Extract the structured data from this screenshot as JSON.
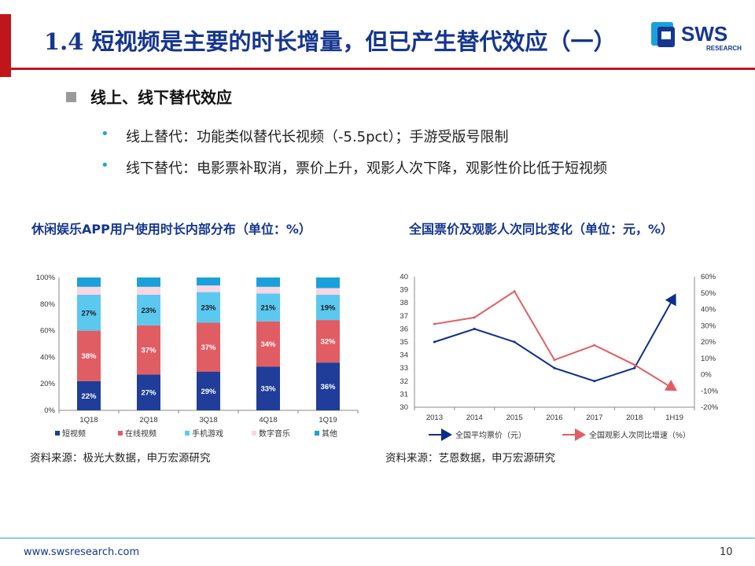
{
  "slide": {
    "title": "1.4 短视频是主要的时长增量，但已产生替代效应（一）",
    "logo_text": "SWS",
    "logo_sub": "RESEARCH",
    "section_heading": "线上、线下替代效应",
    "bullets": [
      "线上替代：功能类似替代长视频（-5.5pct）；手游受版号限制",
      "线下替代：电影票补取消，票价上升，观影人次下降，观影性价比低于短视频"
    ],
    "footer_url": "www.swsresearch.com",
    "page_number": "10"
  },
  "colors": {
    "brand_red": "#c0161b",
    "brand_blue": "#16368f",
    "bullet_blue": "#29a3d9",
    "line_blue": "#0d2e8a",
    "line_red": "#e15d64"
  },
  "chart_data": [
    {
      "type": "bar",
      "stacked": true,
      "title": "休闲娱乐APP用户使用时长内部分布（单位：%）",
      "source": "资料来源：极光大数据，申万宏源研究",
      "categories": [
        "1Q18",
        "2Q18",
        "3Q18",
        "4Q18",
        "1Q19"
      ],
      "ylim": [
        0,
        100
      ],
      "yticks": [
        "0%",
        "20%",
        "40%",
        "60%",
        "80%",
        "100%"
      ],
      "legend_position": "bottom",
      "series": [
        {
          "name": "短视频",
          "color": "#1f3d99",
          "values": [
            22,
            27,
            29,
            33,
            36
          ],
          "labels": [
            "22%",
            "27%",
            "29%",
            "33%",
            "36%"
          ]
        },
        {
          "name": "在线视频",
          "color": "#e15d64",
          "values": [
            38,
            37,
            37,
            34,
            32
          ],
          "labels": [
            "38%",
            "37%",
            "37%",
            "34%",
            "32%"
          ]
        },
        {
          "name": "手机游戏",
          "color": "#5bc8f0",
          "values": [
            27,
            23,
            23,
            21,
            19
          ],
          "labels": [
            "27%",
            "23%",
            "23%",
            "21%",
            "19%"
          ]
        },
        {
          "name": "数字音乐",
          "color": "#f7d7e3",
          "values": [
            6,
            6,
            5,
            5,
            5
          ]
        },
        {
          "name": "其他",
          "color": "#1aa1dc",
          "values": [
            7,
            7,
            6,
            7,
            8
          ]
        }
      ]
    },
    {
      "type": "line",
      "title": "全国票价及观影人次同比变化（单位：元，%）",
      "source": "资料来源：艺恩数据，申万宏源研究",
      "categories": [
        "2013",
        "2014",
        "2015",
        "2016",
        "2017",
        "2018",
        "1H19"
      ],
      "ylim_left": [
        30,
        40
      ],
      "yticks_left": [
        "30",
        "31",
        "32",
        "33",
        "34",
        "35",
        "36",
        "37",
        "38",
        "39",
        "40"
      ],
      "ylim_right": [
        -20,
        60
      ],
      "yticks_right": [
        "-20%",
        "-10%",
        "0%",
        "10%",
        "20%",
        "30%",
        "40%",
        "50%",
        "60%"
      ],
      "legend_position": "bottom",
      "series": [
        {
          "name": "全国平均票价（元）",
          "axis": "left",
          "color": "#0d2e8a",
          "values": [
            35,
            36,
            35,
            33,
            32,
            33,
            38.5
          ]
        },
        {
          "name": "全国观影人次同比增速（%）",
          "axis": "right",
          "color": "#e15d64",
          "values": [
            31,
            35,
            51,
            9,
            18,
            6,
            -9
          ]
        }
      ]
    }
  ]
}
